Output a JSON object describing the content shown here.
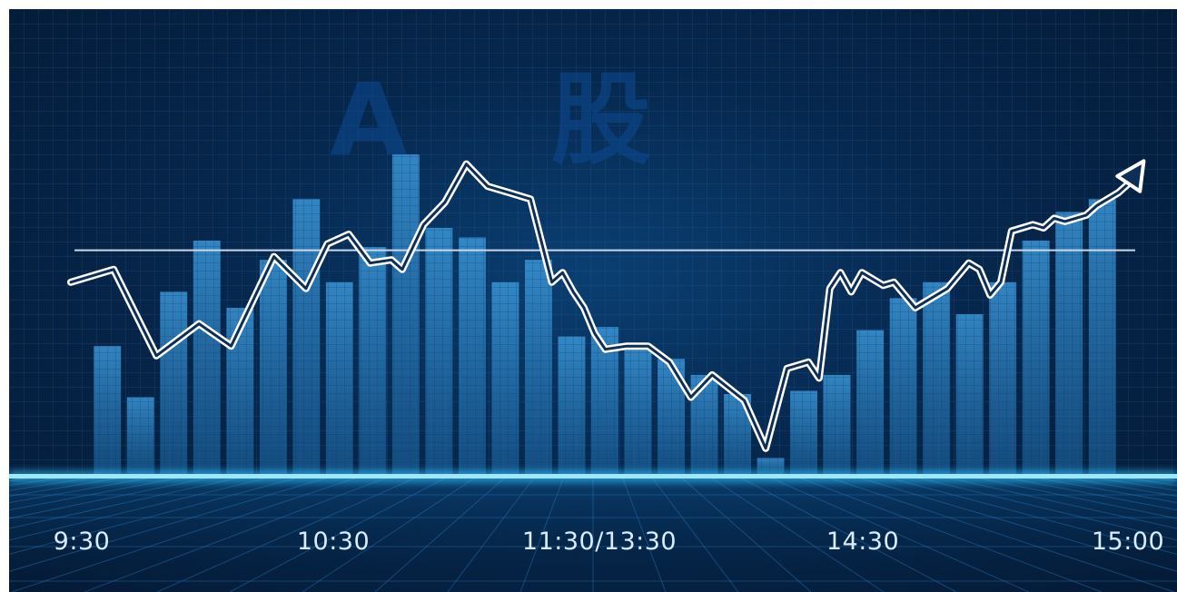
{
  "chart_data": {
    "type": "bar",
    "title": "A 股",
    "xlabel": "",
    "ylabel": "",
    "x_tick_labels": [
      "9:30",
      "10:30",
      "11:30/13:30",
      "14:30",
      "15:00"
    ],
    "ylim": [
      0,
      100
    ],
    "reference_line": 70,
    "bars": [
      40,
      24,
      57,
      73,
      52,
      67,
      86,
      60,
      71,
      100,
      77,
      74,
      60,
      67,
      43,
      46,
      40,
      36,
      31,
      25,
      5,
      26,
      31,
      45,
      55,
      60,
      50,
      60,
      73,
      82,
      86
    ],
    "line": {
      "name": "",
      "x": [
        0,
        4,
        8,
        12,
        15,
        19,
        22,
        24,
        26,
        28,
        30,
        31,
        32,
        33,
        35,
        37,
        39,
        41,
        43,
        45,
        46,
        47,
        48,
        49,
        50,
        52,
        54,
        56,
        58,
        60,
        63,
        65,
        67,
        69,
        70,
        71,
        72,
        73,
        74,
        76,
        77,
        78,
        79,
        80,
        82,
        84,
        85,
        86,
        87,
        88,
        89,
        90,
        91,
        92,
        93,
        94,
        95,
        96,
        98,
        99,
        100
      ],
      "y": [
        60,
        64,
        37,
        47,
        40,
        68,
        58,
        72,
        75,
        66,
        67,
        64,
        71,
        78,
        85,
        97,
        90,
        88,
        86,
        60,
        63,
        57,
        52,
        44,
        39,
        40,
        40,
        35,
        24,
        31,
        23,
        8,
        33,
        35,
        30,
        58,
        63,
        57,
        63,
        59,
        60,
        56,
        52,
        54,
        58,
        66,
        64,
        56,
        60,
        76,
        77,
        78,
        77,
        80,
        79,
        80,
        81,
        84,
        88,
        91,
        96
      ]
    },
    "colors": {
      "bar": "#2e83c4",
      "line": "#ffffff",
      "baseline_glow": "#35c8ff",
      "reference_line": "#c9d8ea"
    },
    "grid": true,
    "arrow_end": true
  }
}
